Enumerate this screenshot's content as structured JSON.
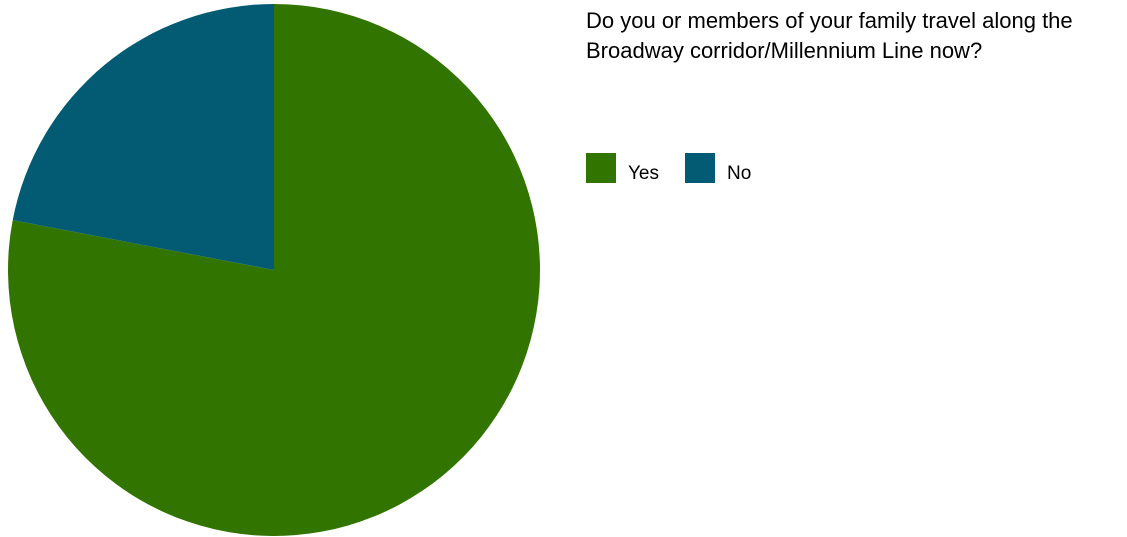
{
  "chart_data": {
    "type": "pie",
    "title": "Do you or members of your family travel along the Broadway corridor/Millennium Line now?",
    "slices": [
      {
        "label": "Yes",
        "value": 78,
        "color": "#327400"
      },
      {
        "label": "No",
        "value": 22,
        "color": "#025b73"
      }
    ],
    "legend_position": "top-right"
  }
}
